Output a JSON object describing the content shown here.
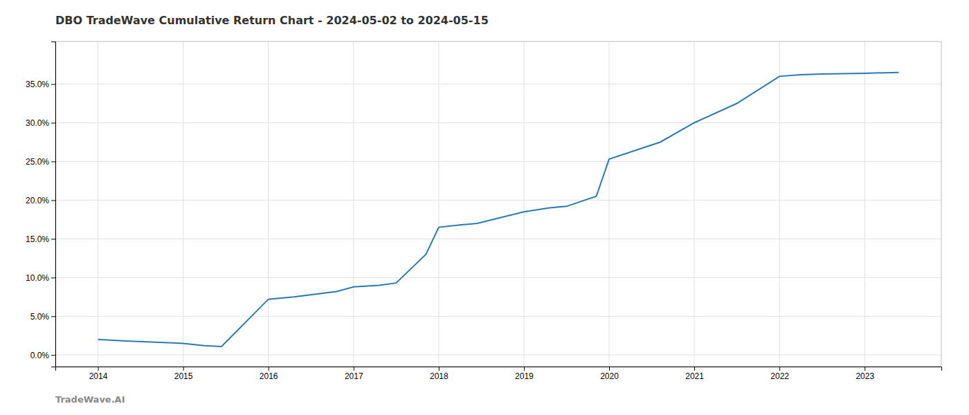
{
  "chart_data": {
    "type": "line",
    "title": "DBO TradeWave Cumulative Return Chart - 2024-05-02 to 2024-05-15",
    "annotations": [
      "TradeWave.AI"
    ],
    "color": "#2878b5",
    "x": [
      2014.0,
      2014.33,
      2015.0,
      2015.25,
      2015.45,
      2016.0,
      2016.3,
      2016.8,
      2017.0,
      2017.3,
      2017.5,
      2017.85,
      2018.0,
      2018.25,
      2018.45,
      2019.0,
      2019.3,
      2019.5,
      2019.85,
      2020.0,
      2020.6,
      2021.0,
      2021.5,
      2022.0,
      2022.25,
      2022.5,
      2023.0,
      2023.4
    ],
    "values": [
      2.0,
      1.8,
      1.5,
      1.2,
      1.1,
      7.2,
      7.5,
      8.2,
      8.8,
      9.0,
      9.3,
      13.0,
      16.5,
      16.8,
      17.0,
      18.5,
      19.0,
      19.2,
      20.5,
      25.3,
      27.5,
      30.0,
      32.5,
      36.0,
      36.2,
      36.3,
      36.4,
      36.5
    ],
    "xlim": [
      2013.5,
      2023.9
    ],
    "ylim": [
      -1.5,
      40.5
    ],
    "xticks": [
      2014,
      2015,
      2016,
      2017,
      2018,
      2019,
      2020,
      2021,
      2022,
      2023
    ],
    "yticks": [
      {
        "value": 0.0,
        "label": "0.0%"
      },
      {
        "value": 5.0,
        "label": "5.0%"
      },
      {
        "value": 10.0,
        "label": "10.0%"
      },
      {
        "value": 15.0,
        "label": "15.0%"
      },
      {
        "value": 20.0,
        "label": "20.0%"
      },
      {
        "value": 25.0,
        "label": "25.0%"
      },
      {
        "value": 30.0,
        "label": "30.0%"
      },
      {
        "value": 35.0,
        "label": "35.0%"
      }
    ],
    "grid": true
  }
}
